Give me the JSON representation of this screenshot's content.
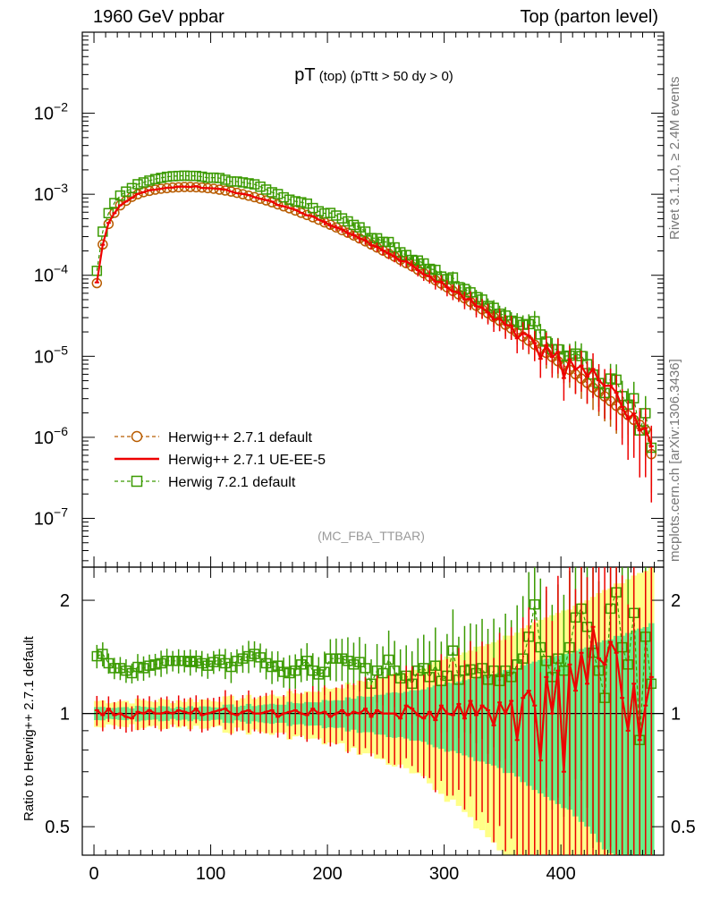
{
  "header": {
    "left": "1960 GeV ppbar",
    "right": "Top (parton level)"
  },
  "side_labels": {
    "rivet": "Rivet 3.1.10, ≥ 2.4M events",
    "mcplots": "mcplots.cern.ch [arXiv:1306.3436]"
  },
  "chart_data": [
    {
      "type": "line",
      "panel": "main",
      "title_main": "pT",
      "title_sub": "(top)",
      "title_cut": "(pTtt > 50 dy > 0)",
      "watermark": "(MC_FBA_TTBAR)",
      "ylabel": "",
      "yscale": "log",
      "xlim": [
        -10,
        488
      ],
      "ylim": [
        2.5e-08,
        0.1
      ],
      "yticks": [
        1e-07,
        1e-06,
        1e-05,
        0.0001,
        0.001,
        0.01
      ],
      "ytick_labels": [
        {
          "base": "10",
          "exp": "−7"
        },
        {
          "base": "10",
          "exp": "−6"
        },
        {
          "base": "10",
          "exp": "−5"
        },
        {
          "base": "10",
          "exp": "−4"
        },
        {
          "base": "10",
          "exp": "−3"
        },
        {
          "base": "10",
          "exp": "−2"
        }
      ],
      "legend_position": "bottom-left",
      "series": [
        {
          "name": "Herwig++ 2.7.1 default",
          "color": "#b85c00",
          "marker": "circle",
          "linestyle": "dashed",
          "x": [
            2.5,
            7.5,
            12.5,
            17.5,
            22.5,
            27.5,
            32.5,
            37.5,
            42.5,
            47.5,
            52.5,
            57.5,
            62.5,
            67.5,
            72.5,
            77.5,
            82.5,
            87.5,
            92.5,
            97.5,
            102.5,
            107.5,
            112.5,
            117.5,
            122.5,
            127.5,
            132.5,
            137.5,
            142.5,
            147.5,
            152.5,
            157.5,
            162.5,
            167.5,
            172.5,
            177.5,
            182.5,
            187.5,
            192.5,
            197.5,
            202.5,
            207.5,
            212.5,
            217.5,
            222.5,
            227.5,
            232.5,
            237.5,
            242.5,
            247.5,
            252.5,
            257.5,
            262.5,
            267.5,
            272.5,
            277.5,
            282.5,
            287.5,
            292.5,
            297.5,
            302.5,
            307.5,
            312.5,
            317.5,
            322.5,
            327.5,
            332.5,
            337.5,
            342.5,
            347.5,
            352.5,
            357.5,
            362.5,
            367.5,
            372.5,
            377.5,
            382.5,
            387.5,
            392.5,
            397.5,
            402.5,
            407.5,
            412.5,
            417.5,
            422.5,
            427.5,
            432.5,
            437.5,
            442.5,
            447.5,
            452.5,
            457.5,
            462.5,
            467.5,
            472.5,
            477.5
          ],
          "y": [
            8e-05,
            0.00024,
            0.00043,
            0.00059,
            0.00073,
            0.00083,
            0.00093,
            0.001,
            0.00106,
            0.0011,
            0.00114,
            0.00117,
            0.00119,
            0.00121,
            0.00122,
            0.00123,
            0.00123,
            0.00122,
            0.00121,
            0.00119,
            0.00117,
            0.00114,
            0.00111,
            0.00108,
            0.00104,
            0.001,
            0.00096,
            0.00092,
            0.00088,
            0.00084,
            0.000795,
            0.00075,
            0.00071,
            0.00067,
            0.00063,
            0.00059,
            0.000555,
            0.00052,
            0.000485,
            0.00045,
            0.00042,
            0.00039,
            0.00036,
            0.000335,
            0.00031,
            0.000285,
            0.000262,
            0.00024,
            0.00022,
            0.000202,
            0.000185,
            0.00017,
            0.000155,
            0.000141,
            0.000129,
            0.000117,
            0.000106,
            9.6e-05,
            8.7e-05,
            7.9e-05,
            7.1e-05,
            6.4e-05,
            5.8e-05,
            5.2e-05,
            4.7e-05,
            4.2e-05,
            3.8e-05,
            3.4e-05,
            3.05e-05,
            2.75e-05,
            2.45e-05,
            2.2e-05,
            1.96e-05,
            1.75e-05,
            1.56e-05,
            1.39e-05,
            1.24e-05,
            1.1e-05,
            9.8e-06,
            8.7e-06,
            7.7e-06,
            6.8e-06,
            6e-06,
            5.3e-06,
            4.7e-06,
            4.1e-06,
            3.6e-06,
            3.2e-06,
            2.8e-06,
            2.45e-06,
            2.15e-06,
            1.88e-06,
            1.64e-06,
            1.43e-06,
            1.24e-06,
            6.2e-07
          ]
        },
        {
          "name": "Herwig++ 2.7.1 UE-EE-5",
          "color": "#ee0000",
          "marker": "none",
          "linestyle": "solid",
          "ratio": [
            1.02,
            0.99,
            1.03,
            0.99,
            1.0,
            0.98,
            0.97,
            1.01,
            1.0,
            1.02,
            1.0,
            1.0,
            1.01,
            1.0,
            1.02,
            1.01,
            1.0,
            1.03,
            0.99,
            1.0,
            1.01,
            1.02,
            1.03,
            1.0,
            0.99,
            1.01,
            1.02,
            1.0,
            1.0,
            1.01,
            1.02,
            0.98,
            1.0,
            1.01,
            1.02,
            1.0,
            0.99,
            1.03,
            1.0,
            1.01,
            0.98,
            1.0,
            1.02,
            0.99,
            1.01,
            1.0,
            1.03,
            0.98,
            1.02,
            1.0,
            1.0,
            1.0,
            0.97,
            1.05,
            1.03,
            0.99,
            0.97,
            1.01,
            0.96,
            1.05,
            1.0,
            0.99,
            1.06,
            0.97,
            1.08,
            0.99,
            1.05,
            1.02,
            0.93,
            1.07,
            1.0,
            1.08,
            0.85,
            1.1,
            1.15,
            1.05,
            0.75,
            1.25,
            1.0,
            1.3,
            0.7,
            1.35,
            1.15,
            1.45,
            1.2,
            1.7,
            1.4,
            1.35,
            1.55,
            1.45,
            1.1,
            0.9,
            1.2,
            0.85,
            1.05,
            1.25
          ]
        },
        {
          "name": "Herwig 7.2.1 default",
          "color": "#3a9a00",
          "marker": "square",
          "linestyle": "dashed",
          "ratio": [
            1.42,
            1.44,
            1.36,
            1.32,
            1.32,
            1.3,
            1.28,
            1.33,
            1.32,
            1.34,
            1.35,
            1.36,
            1.38,
            1.38,
            1.38,
            1.38,
            1.37,
            1.38,
            1.36,
            1.34,
            1.37,
            1.39,
            1.36,
            1.33,
            1.38,
            1.4,
            1.42,
            1.44,
            1.41,
            1.36,
            1.33,
            1.34,
            1.29,
            1.28,
            1.3,
            1.35,
            1.38,
            1.3,
            1.27,
            1.29,
            1.4,
            1.4,
            1.4,
            1.38,
            1.35,
            1.37,
            1.32,
            1.2,
            1.3,
            1.28,
            1.39,
            1.3,
            1.24,
            1.26,
            1.2,
            1.3,
            1.32,
            1.25,
            1.34,
            1.22,
            1.26,
            1.47,
            1.23,
            1.3,
            1.31,
            1.28,
            1.32,
            1.23,
            1.3,
            1.22,
            1.3,
            1.25,
            1.35,
            1.4,
            1.6,
            1.95,
            1.5,
            1.38,
            1.25,
            1.4,
            1.3,
            1.5,
            1.8,
            1.9,
            1.7,
            1.45,
            1.3,
            1.1,
            1.9,
            2.1,
            1.5,
            1.35,
            1.85,
            0.85,
            1.6,
            1.2
          ]
        }
      ]
    },
    {
      "type": "line",
      "panel": "ratio",
      "ylabel": "Ratio to Herwig++ 2.7.1 default",
      "yscale": "log",
      "ylim": [
        0.42,
        2.45
      ],
      "yticks": [
        0.5,
        1,
        2
      ],
      "ytick_labels": [
        "0.5",
        "1",
        "2"
      ],
      "xlim": [
        -10,
        488
      ],
      "xticks": [
        0,
        100,
        200,
        300,
        400
      ],
      "xtick_labels": [
        "0",
        "100",
        "200",
        "300",
        "400"
      ],
      "reference_line": 1.0,
      "band_colors": {
        "inner": "#66ee88",
        "outer": "#ffff88"
      }
    }
  ]
}
